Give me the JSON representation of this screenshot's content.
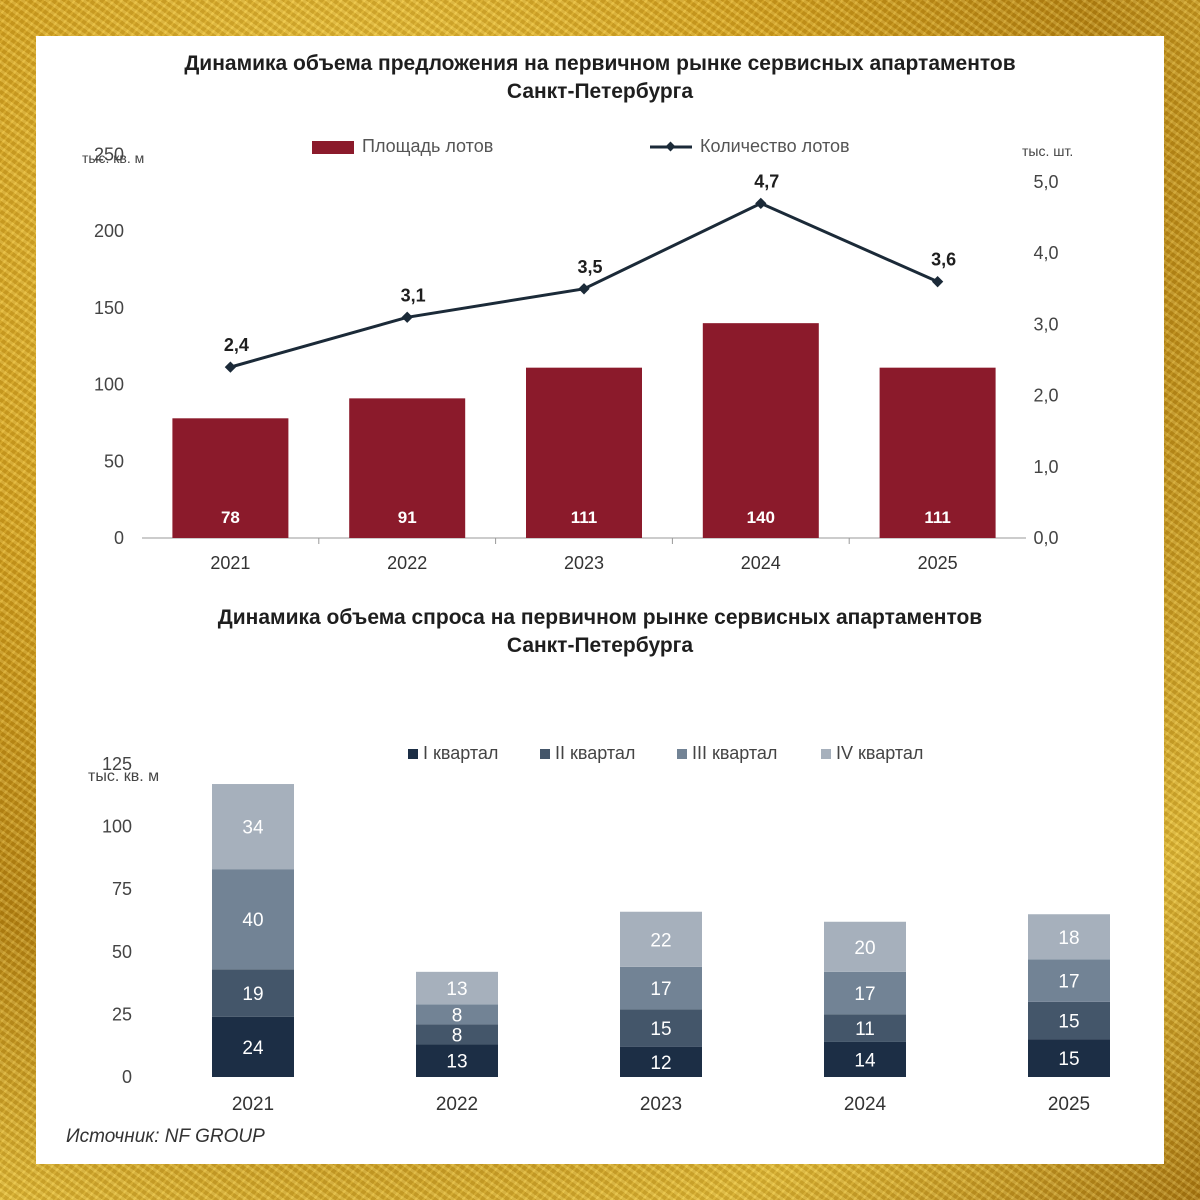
{
  "chart_data": [
    {
      "type": "bar",
      "title": "Динамика объема предложения на первичном рынке сервисных апартаментов\nСанкт-Петербурга",
      "categories": [
        "2021",
        "2022",
        "2023",
        "2024",
        "2025"
      ],
      "y_left_label": "тыс. кв. м",
      "y_right_label": "тыс. шт.",
      "y_left_ticks": [
        "0",
        "50",
        "100",
        "150",
        "200",
        "250"
      ],
      "y_right_ticks": [
        "0,0",
        "1,0",
        "2,0",
        "3,0",
        "4,0",
        "5,0"
      ],
      "ylim_left": [
        0,
        275
      ],
      "ylim_right": [
        0,
        5
      ],
      "legend": [
        "Площадь лотов",
        "Количество лотов"
      ],
      "series": [
        {
          "name": "Площадь лотов",
          "type": "bar",
          "axis": "left",
          "values": [
            78,
            91,
            111,
            140,
            111
          ],
          "labels": [
            "78",
            "91",
            "111",
            "140",
            "111"
          ],
          "color": "#8b1a2b"
        },
        {
          "name": "Количество лотов",
          "type": "line",
          "axis": "right",
          "values": [
            2.4,
            3.1,
            3.5,
            4.7,
            3.6
          ],
          "labels": [
            "2,4",
            "3,1",
            "3,5",
            "4,7",
            "3,6"
          ],
          "color": "#1b2a38"
        }
      ]
    },
    {
      "type": "bar",
      "stacked": true,
      "title": "Динамика объема спроса на первичном рынке сервисных апартаментов\nСанкт-Петербурга",
      "categories": [
        "2021",
        "2022",
        "2023",
        "2024",
        "2025"
      ],
      "ylabel": "тыс. кв. м",
      "y_ticks": [
        "0",
        "25",
        "50",
        "75",
        "100",
        "125"
      ],
      "ylim": [
        0,
        125
      ],
      "series": [
        {
          "name": "I квартал",
          "values": [
            24,
            13,
            12,
            14,
            15
          ],
          "color": "#1c2e45"
        },
        {
          "name": "II квартал",
          "values": [
            19,
            8,
            15,
            11,
            15
          ],
          "color": "#44566a"
        },
        {
          "name": "III квартал",
          "values": [
            40,
            8,
            17,
            17,
            17
          ],
          "color": "#728395"
        },
        {
          "name": "IV квартал",
          "values": [
            34,
            13,
            22,
            20,
            18
          ],
          "color": "#a6b0bc"
        }
      ]
    }
  ],
  "source": "Источник: NF GROUP"
}
